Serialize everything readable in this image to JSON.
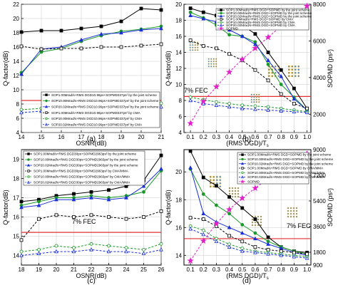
{
  "chart_data": [
    {
      "type": "line",
      "panel_label": "(a)",
      "xlabel": "OSNR(dB)",
      "ylabel": "Q-factor(dB)",
      "xlim": [
        14,
        21
      ],
      "ylim": [
        4,
        22
      ],
      "xticks": [
        "14",
        "15",
        "16",
        "17",
        "18",
        "19",
        "20",
        "21"
      ],
      "yticks": [
        "4",
        "6",
        "8",
        "10",
        "12",
        "14",
        "16",
        "18",
        "20",
        "22"
      ],
      "fec_label": "7% FEC",
      "fec_value": 8.5,
      "grid": true,
      "legend_position": "lower-right",
      "series": [
        {
          "name": "SOP1.00Mrad/s+RMS DGD10.96ps+SOPMD337ps² by the joint scheme",
          "color": "#000000",
          "marker": "square",
          "filled": true,
          "dashed": false,
          "x": [
            14,
            15,
            16,
            17,
            18,
            19,
            20,
            21
          ],
          "y": [
            18.1,
            18.3,
            18.3,
            18.6,
            18.9,
            19.6,
            21.4,
            21.2
          ]
        },
        {
          "name": "SOP10.00Mrad/s+RMS DGD10.96ps+SOPMD337ps² by the joint scheme",
          "color": "#1a9a2a",
          "marker": "circle",
          "filled": true,
          "dashed": false,
          "x": [
            14,
            15,
            16,
            17,
            18,
            19,
            20,
            21
          ],
          "y": [
            12.4,
            15.3,
            15.8,
            16.8,
            17.6,
            18.2,
            18.5,
            18.9
          ]
        },
        {
          "name": "SOP20.02Mrad/s+RMS DGD10.96ps+SOPMD337ps² by the joint scheme",
          "color": "#1a2fd6",
          "marker": "triangle",
          "filled": true,
          "dashed": false,
          "x": [
            14,
            15,
            16,
            17,
            18,
            19,
            20,
            21
          ],
          "y": [
            12.2,
            15.7,
            16.0,
            17.0,
            17.8,
            18.0,
            18.4,
            18.6
          ]
        },
        {
          "name": "SOP1.00Mrad/s+RMS DGD10.96ps+SOPMD337ps² by CMA",
          "color": "#000000",
          "marker": "square",
          "filled": false,
          "dashed": true,
          "x": [
            14,
            15,
            16,
            17,
            18,
            19,
            20,
            21
          ],
          "y": [
            16.1,
            15.7,
            15.8,
            15.8,
            16.0,
            16.0,
            16.2,
            16.4
          ]
        },
        {
          "name": "SOP10.00Mrad/s+RMS DGD10.96ps+SOPMD337ps² by CMA",
          "color": "#1a9a2a",
          "marker": "circle",
          "filled": false,
          "dashed": true,
          "x": [
            14,
            15,
            16,
            17,
            18,
            19,
            20,
            21
          ],
          "y": [
            7.2,
            7.4,
            7.6,
            7.5,
            7.9,
            7.8,
            7.7,
            8.1
          ]
        },
        {
          "name": "SOP20.02Mrad/s+RMS DGD10.96ps+SOPMD337ps² by CMA",
          "color": "#1a2fd6",
          "marker": "triangle",
          "filled": false,
          "dashed": true,
          "x": [
            14,
            15,
            16,
            17,
            18,
            19,
            20,
            21
          ],
          "y": [
            6.8,
            7.0,
            6.9,
            7.1,
            7.3,
            7.2,
            7.4,
            7.6
          ]
        }
      ]
    },
    {
      "type": "line",
      "panel_label": "(b)",
      "xlabel": "(RMS DGD)/T",
      "xlabel_sub": "s",
      "ylabel": "Q-factor(dB)",
      "y2label": "SOPMD (ps²)",
      "xlim": [
        0.05,
        1.03
      ],
      "ylim": [
        4,
        20
      ],
      "y2lim": [
        1000,
        8000
      ],
      "xticks": [
        "0.1",
        "0.2",
        "0.3",
        "0.4",
        "0.5",
        "0.6",
        "0.7",
        "0.8",
        "0.9",
        "1.0"
      ],
      "yticks": [
        "4",
        "6",
        "8",
        "10",
        "12",
        "14",
        "16",
        "18",
        "20"
      ],
      "y2ticks": [
        "2000",
        "4000",
        "6000",
        "8000"
      ],
      "fec_label": "7% FEC",
      "fec_value": 8.5,
      "grid": true,
      "legend_position": "top-right",
      "series": [
        {
          "name": "SOP1.00Mrad/s+RMS DGD+SOPMD by the joint scheme",
          "color": "#000000",
          "marker": "square",
          "filled": true,
          "dashed": false,
          "axis": "left",
          "x": [
            0.1,
            0.2,
            0.3,
            0.4,
            0.5,
            0.6,
            0.7,
            0.8,
            0.9,
            1.0
          ],
          "y": [
            19.5,
            19.0,
            18.6,
            18.2,
            17.4,
            16.3,
            14.0,
            11.8,
            9.5,
            7.0
          ]
        },
        {
          "name": "SOP10.00Mrad/s+RMS DGD+SOPMD by the joint scheme",
          "color": "#1a9a2a",
          "marker": "circle",
          "filled": true,
          "dashed": false,
          "axis": "left",
          "x": [
            0.1,
            0.2,
            0.3,
            0.4,
            0.5,
            0.6,
            0.7,
            0.8,
            0.9,
            1.0
          ],
          "y": [
            19.0,
            18.3,
            17.4,
            16.2,
            16.0,
            15.3,
            12.5,
            10.0,
            8.4,
            6.8
          ]
        },
        {
          "name": "SOP20.02Mrad/s+RMS DGD+SOPMD by the joint scheme",
          "color": "#1a2fd6",
          "marker": "triangle",
          "filled": true,
          "dashed": false,
          "axis": "left",
          "x": [
            0.1,
            0.2,
            0.3,
            0.4,
            0.5,
            0.6,
            0.7,
            0.8,
            0.9,
            1.0
          ],
          "y": [
            18.6,
            18.2,
            17.8,
            16.8,
            16.0,
            15.0,
            13.0,
            11.0,
            8.2,
            6.8
          ]
        },
        {
          "name": "SOP1.00Mrad/s+RMS DGD+SOPMD by CMA",
          "color": "#000000",
          "marker": "square",
          "filled": false,
          "dashed": true,
          "axis": "left",
          "x": [
            0.1,
            0.2,
            0.3,
            0.4,
            0.5,
            0.6,
            0.7,
            0.8,
            0.9,
            1.0
          ],
          "y": [
            15.5,
            14.8,
            14.5,
            13.8,
            13.0,
            11.8,
            10.5,
            8.8,
            7.6,
            7.0
          ]
        },
        {
          "name": "SOP10.00Mrad/s+RMS DGD+SOPMD by CMA",
          "color": "#1a9a2a",
          "marker": "circle",
          "filled": false,
          "dashed": true,
          "axis": "left",
          "x": [
            0.1,
            0.2,
            0.3,
            0.4,
            0.5,
            0.6,
            0.7,
            0.8,
            0.9,
            1.0
          ],
          "y": [
            8.4,
            8.1,
            7.8,
            7.6,
            7.4,
            7.3,
            7.2,
            7.0,
            6.8,
            6.6
          ]
        },
        {
          "name": "SOP20.02Mrad/s+RMS DGD+SOPMD by CMA",
          "color": "#1a2fd6",
          "marker": "triangle",
          "filled": false,
          "dashed": true,
          "axis": "left",
          "x": [
            0.1,
            0.2,
            0.3,
            0.4,
            0.5,
            0.6,
            0.7,
            0.8,
            0.9,
            1.0
          ],
          "y": [
            8.0,
            7.6,
            7.4,
            7.2,
            7.0,
            6.9,
            6.8,
            6.7,
            6.6,
            6.5
          ]
        },
        {
          "name": "SOPMD",
          "color": "#e020c8",
          "marker": "star",
          "filled": true,
          "dashed": true,
          "axis": "right",
          "x": [
            0.1,
            0.2,
            0.3,
            0.4,
            0.5,
            0.6,
            0.7,
            0.8,
            0.9,
            1.0
          ],
          "y": [
            1500,
            2700,
            3500,
            4300,
            5000,
            5600,
            6200,
            6800,
            7300,
            7900
          ]
        }
      ]
    },
    {
      "type": "line",
      "panel_label": "(c)",
      "xlabel": "OSNR(dB)",
      "ylabel": "Q-factor(dB)",
      "xlim": [
        18,
        26
      ],
      "ylim": [
        13.5,
        19.5
      ],
      "xticks": [
        "18",
        "19",
        "20",
        "21",
        "22",
        "23",
        "24",
        "25",
        "26"
      ],
      "yticks": [
        "14",
        "15",
        "16",
        "17",
        "18",
        "19"
      ],
      "fec_label": "7% FEC",
      "fec_value": 15.2,
      "grid": true,
      "legend_position": "top-left",
      "series": [
        {
          "name": "SOP1.00Mrad/s+RMS DGD30ps+SOPMD2963ps² by the joint scheme",
          "color": "#000000",
          "marker": "square",
          "filled": true,
          "dashed": false,
          "x": [
            18,
            19,
            20,
            21,
            22,
            23,
            24,
            25,
            26
          ],
          "y": [
            16.8,
            16.9,
            17.1,
            17.2,
            17.3,
            17.4,
            17.6,
            17.9,
            19.2
          ]
        },
        {
          "name": "SOP10.00Mrad/s+RMS DGD30ps+SOPMD2963ps² by the joint scheme",
          "color": "#1a9a2a",
          "marker": "circle",
          "filled": true,
          "dashed": false,
          "x": [
            18,
            19,
            20,
            21,
            22,
            23,
            24,
            25,
            26
          ],
          "y": [
            16.6,
            16.8,
            17.0,
            17.0,
            17.1,
            17.0,
            17.1,
            17.3,
            18.4
          ]
        },
        {
          "name": "SOP20.02Mrad/s+RMS DGD30ps+SOPMD2963ps² by the joint scheme",
          "color": "#1a2fd6",
          "marker": "triangle",
          "filled": true,
          "dashed": false,
          "x": [
            18,
            19,
            20,
            21,
            22,
            23,
            24,
            25,
            26
          ],
          "y": [
            16.5,
            16.6,
            16.9,
            16.9,
            17.0,
            16.9,
            17.0,
            17.6,
            18.5
          ]
        },
        {
          "name": "SOP1.00Mrad/s+RMS DGD30ps+SOPMD2963ps² by CMA/MMA",
          "color": "#000000",
          "marker": "square",
          "filled": false,
          "dashed": true,
          "x": [
            18,
            19,
            20,
            21,
            22,
            23,
            24,
            25,
            26
          ],
          "y": [
            14.8,
            15.9,
            16.1,
            16.0,
            16.1,
            16.0,
            15.9,
            16.0,
            16.3
          ]
        },
        {
          "name": "SOP10.00Mrad/s+RMS DGD30ps+SOPMD2963ps² by CMA/MMA",
          "color": "#1a9a2a",
          "marker": "circle",
          "filled": false,
          "dashed": true,
          "x": [
            18,
            19,
            20,
            21,
            22,
            23,
            24,
            25,
            26
          ],
          "y": [
            14.2,
            14.3,
            14.5,
            14.4,
            14.6,
            14.5,
            14.4,
            14.3,
            14.6
          ]
        },
        {
          "name": "SOP20.02Mrad/s+RMS DGD30ps+SOPMD2963ps² by CMA/MMA",
          "color": "#1a2fd6",
          "marker": "triangle",
          "filled": false,
          "dashed": true,
          "x": [
            18,
            19,
            20,
            21,
            22,
            23,
            24,
            25,
            26
          ],
          "y": [
            14.0,
            14.1,
            14.2,
            14.2,
            14.3,
            14.2,
            14.2,
            14.1,
            14.3
          ]
        }
      ]
    },
    {
      "type": "line",
      "panel_label": "(d)",
      "xlabel": "(RMS DGD)/T",
      "xlabel_sub": "s",
      "ylabel": "Q-factor(dB)",
      "y2label": "SOPMD (ps²)",
      "xlim": [
        0.05,
        1.03
      ],
      "ylim": [
        13.3,
        21.6
      ],
      "y2lim": [
        900,
        9000
      ],
      "xticks": [
        "0.1",
        "0.2",
        "0.3",
        "0.4",
        "0.5",
        "0.6",
        "0.7",
        "0.8",
        "0.9",
        "1.0"
      ],
      "yticks": [
        "14",
        "16",
        "18",
        "20"
      ],
      "y2ticks": [
        "900",
        "1800",
        "3600",
        "5400",
        "7200",
        "9000"
      ],
      "fec_label": "7% FEC",
      "fec_value": 15.2,
      "grid": true,
      "legend_position": "top-right",
      "series": [
        {
          "name": "SOP1.00Mrad/s+RMS DGD+SOPMD by the joint scheme",
          "color": "#000000",
          "marker": "square",
          "filled": true,
          "dashed": false,
          "axis": "left",
          "x": [
            0.1,
            0.2,
            0.3,
            0.4,
            0.5,
            0.6,
            0.7,
            0.8,
            0.9,
            1.0
          ],
          "y": [
            21.5,
            19.6,
            19.0,
            18.2,
            17.4,
            16.6,
            15.3,
            14.6,
            14.3,
            14.2
          ]
        },
        {
          "name": "SOP10.00Mrad/s+RMS DGD+SOPMD by the joint scheme",
          "color": "#1a9a2a",
          "marker": "circle",
          "filled": true,
          "dashed": false,
          "axis": "left",
          "x": [
            0.1,
            0.2,
            0.3,
            0.4,
            0.5,
            0.6,
            0.7,
            0.8,
            0.9,
            1.0
          ],
          "y": [
            20.2,
            18.4,
            17.6,
            17.0,
            16.2,
            15.6,
            15.0,
            14.6,
            14.3,
            14.1
          ]
        },
        {
          "name": "SOP20.02Mrad/s+RMS DGD+SOPMD by the joint scheme",
          "color": "#1a2fd6",
          "marker": "triangle",
          "filled": true,
          "dashed": false,
          "axis": "left",
          "x": [
            0.1,
            0.2,
            0.3,
            0.4,
            0.5,
            0.6,
            0.7,
            0.8,
            0.9,
            1.0
          ],
          "y": [
            20.3,
            17.0,
            16.4,
            16.0,
            15.6,
            15.2,
            14.8,
            14.5,
            14.2,
            14.0
          ]
        },
        {
          "name": "SOP1.00Mrad/s+RMS DGD+SOPMD by CMA/MMA",
          "color": "#000000",
          "marker": "square",
          "filled": false,
          "dashed": true,
          "axis": "left",
          "x": [
            0.1,
            0.2,
            0.3,
            0.4,
            0.5,
            0.6,
            0.7,
            0.8,
            0.9,
            1.0
          ],
          "y": [
            16.7,
            16.6,
            16.1,
            15.4,
            15.0,
            14.6,
            14.4,
            14.3,
            14.2,
            14.1
          ]
        },
        {
          "name": "SOP10.00Mrad/s+RMS DGD+SOPMD by CMA/MMA",
          "color": "#1a9a2a",
          "marker": "circle",
          "filled": false,
          "dashed": true,
          "axis": "left",
          "x": [
            0.1,
            0.2,
            0.3,
            0.4,
            0.5,
            0.6,
            0.7,
            0.8,
            0.9,
            1.0
          ],
          "y": [
            16.1,
            15.8,
            15.2,
            14.8,
            14.5,
            14.3,
            14.2,
            14.1,
            14.0,
            13.9
          ]
        },
        {
          "name": "SOP20.02Mrad/s+RMS DGD+SOPMD by CMA/MMA",
          "color": "#1a2fd6",
          "marker": "triangle",
          "filled": false,
          "dashed": true,
          "axis": "left",
          "x": [
            0.1,
            0.2,
            0.3,
            0.4,
            0.5,
            0.6,
            0.7,
            0.8,
            0.9,
            1.0
          ],
          "y": [
            15.9,
            15.5,
            15.0,
            14.6,
            14.3,
            14.2,
            14.1,
            14.0,
            13.9,
            13.8
          ]
        },
        {
          "name": "SOPMD",
          "color": "#e020c8",
          "marker": "star",
          "filled": true,
          "dashed": true,
          "axis": "right",
          "x": [
            0.1,
            0.2,
            0.3,
            0.4,
            0.5,
            0.6,
            0.7,
            0.8,
            0.9,
            1.0
          ],
          "y": [
            1200,
            2600,
            3800,
            4800,
            5600,
            6300,
            7000,
            7600,
            8200,
            8700
          ]
        }
      ]
    }
  ]
}
